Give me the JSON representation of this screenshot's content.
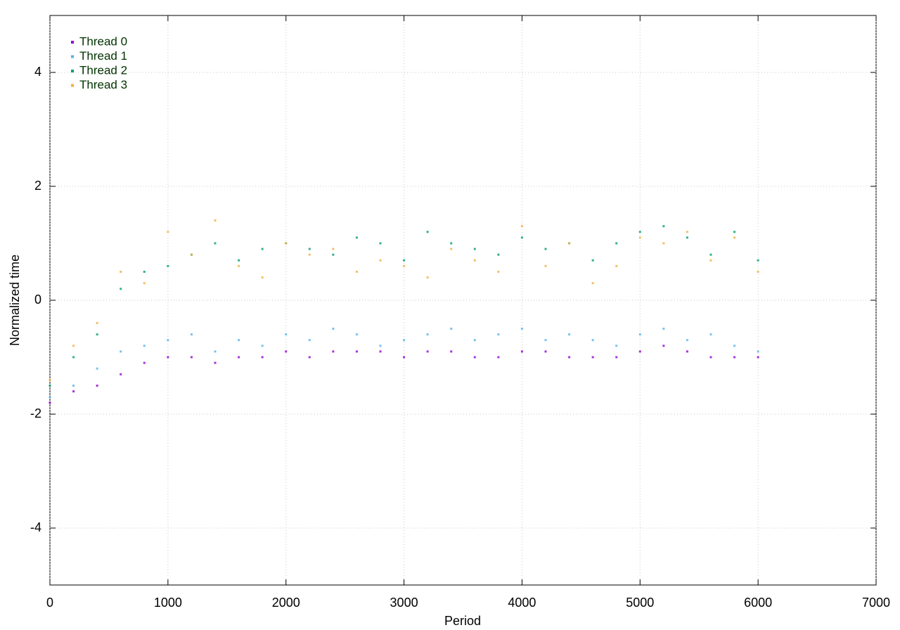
{
  "chart_data": {
    "type": "scatter",
    "xlabel": "Period",
    "ylabel": "Normalized time",
    "xlim": [
      0,
      7000
    ],
    "ylim": [
      -5,
      5
    ],
    "xticks": [
      0,
      1000,
      2000,
      3000,
      4000,
      5000,
      6000,
      7000
    ],
    "yticks": [
      -4,
      -2,
      0,
      2,
      4
    ],
    "grid": true,
    "legend": "upper left",
    "x": [
      0,
      200,
      400,
      600,
      800,
      1000,
      1200,
      1400,
      1600,
      1800,
      2000,
      2200,
      2400,
      2600,
      2800,
      3000,
      3200,
      3400,
      3600,
      3800,
      4000,
      4200,
      4400,
      4600,
      4800,
      5000,
      5200,
      5400,
      5600,
      5800,
      6000
    ],
    "series": [
      {
        "name": "Thread 0",
        "color": "#9400d3",
        "values": [
          -1.8,
          -1.6,
          -1.5,
          -1.3,
          -1.1,
          -1.0,
          -1.0,
          -1.1,
          -1.0,
          -1.0,
          -0.9,
          -1.0,
          -0.9,
          -0.9,
          -0.9,
          -1.0,
          -0.9,
          -0.9,
          -1.0,
          -1.0,
          -0.9,
          -0.9,
          -1.0,
          -1.0,
          -1.0,
          -0.9,
          -0.8,
          -0.9,
          -1.0,
          -1.0,
          -1.0
        ]
      },
      {
        "name": "Thread 1",
        "color": "#56b4e9",
        "values": [
          -1.7,
          -1.5,
          -1.2,
          -0.9,
          -0.8,
          -0.7,
          -0.6,
          -0.9,
          -0.7,
          -0.8,
          -0.6,
          -0.7,
          -0.5,
          -0.6,
          -0.8,
          -0.7,
          -0.6,
          -0.5,
          -0.7,
          -0.6,
          -0.5,
          -0.7,
          -0.6,
          -0.7,
          -0.8,
          -0.6,
          -0.5,
          -0.7,
          -0.6,
          -0.8,
          -0.9
        ]
      },
      {
        "name": "Thread 2",
        "color": "#009e73",
        "values": [
          -1.5,
          -1.0,
          -0.6,
          0.2,
          0.5,
          0.6,
          0.8,
          1.0,
          0.7,
          0.9,
          1.0,
          0.9,
          0.8,
          1.1,
          1.0,
          0.7,
          1.2,
          1.0,
          0.9,
          0.8,
          1.1,
          0.9,
          1.0,
          0.7,
          1.0,
          1.2,
          1.3,
          1.1,
          0.8,
          1.2,
          0.7
        ]
      },
      {
        "name": "Thread 3",
        "color": "#f0b040",
        "values": [
          -1.4,
          -0.8,
          -0.4,
          0.5,
          0.3,
          1.2,
          0.8,
          1.4,
          0.6,
          0.4,
          1.0,
          0.8,
          0.9,
          0.5,
          0.7,
          0.6,
          0.4,
          0.9,
          0.7,
          0.5,
          1.3,
          0.6,
          1.0,
          0.3,
          0.6,
          1.1,
          1.0,
          1.2,
          0.7,
          1.1,
          0.5
        ]
      }
    ]
  }
}
